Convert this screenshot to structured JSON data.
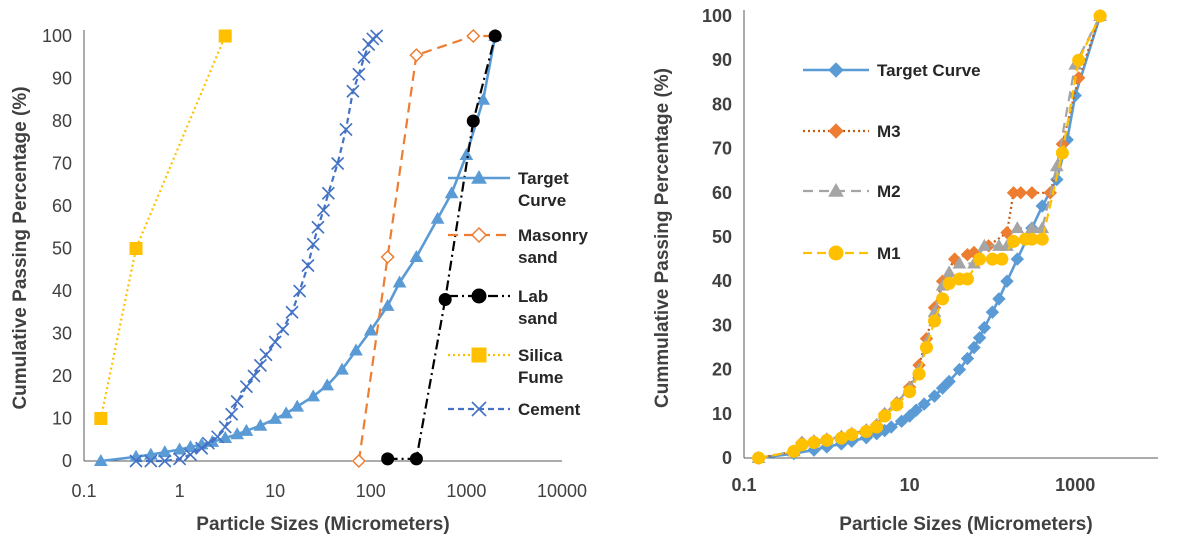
{
  "colors": {
    "target": "#5B9BD5",
    "masonry": "#ED7D31",
    "lab": "#000000",
    "silica": "#FFC000",
    "cement": "#4472C4",
    "m3": "#C55A11",
    "m3_marker": "#ED7D31",
    "m2": "#A5A5A5",
    "m1": "#FFC000",
    "axis": "#595959"
  },
  "chart_data": [
    {
      "type": "line",
      "x_scale": "log",
      "xlabel": "Particle Sizes (Micrometers)",
      "ylabel": "Cumulative Passing Percentage (%)",
      "xlim": [
        0.1,
        10000
      ],
      "ylim": [
        0,
        100
      ],
      "x_ticks": [
        "0.1",
        "1",
        "10",
        "100",
        "1000",
        "10000"
      ],
      "y_ticks": [
        "0",
        "10",
        "20",
        "30",
        "40",
        "50",
        "60",
        "70",
        "80",
        "90",
        "100"
      ],
      "legend_position": "right",
      "series": [
        {
          "name": "Target Curve",
          "color_key": "target",
          "marker": "triangle",
          "dash": "solid",
          "points": [
            [
              0.15,
              0
            ],
            [
              0.35,
              1
            ],
            [
              0.5,
              1.5
            ],
            [
              0.7,
              2.1
            ],
            [
              1,
              2.7
            ],
            [
              1.3,
              3.3
            ],
            [
              1.7,
              3.9
            ],
            [
              2.2,
              4.5
            ],
            [
              3,
              5.4
            ],
            [
              4,
              6.3
            ],
            [
              5,
              7.1
            ],
            [
              7,
              8.3
            ],
            [
              10,
              9.9
            ],
            [
              13,
              11.2
            ],
            [
              17,
              12.8
            ],
            [
              25,
              15.2
            ],
            [
              35,
              17.8
            ],
            [
              50,
              21.5
            ],
            [
              70,
              26
            ],
            [
              100,
              30.7
            ],
            [
              150,
              36.5
            ],
            [
              200,
              42
            ],
            [
              300,
              48
            ],
            [
              500,
              57
            ],
            [
              700,
              63
            ],
            [
              1000,
              72
            ],
            [
              1500,
              85
            ],
            [
              2000,
              100
            ]
          ]
        },
        {
          "name": "Masonry sand",
          "color_key": "masonry",
          "marker": "diamond-open",
          "dash": "long-dash",
          "points": [
            [
              75,
              0
            ],
            [
              150,
              48
            ],
            [
              300,
              95.5
            ],
            [
              1180,
              100
            ],
            [
              2000,
              100
            ]
          ]
        },
        {
          "name": "Lab sand",
          "color_key": "lab",
          "marker": "circle",
          "dash": "dash-dot",
          "points": [
            [
              150,
              0.5
            ],
            [
              300,
              0.5
            ],
            [
              600,
              38
            ],
            [
              1180,
              80
            ],
            [
              2000,
              100
            ]
          ]
        },
        {
          "name": "Silica Fume",
          "color_key": "silica",
          "marker": "square",
          "dash": "dot",
          "points": [
            [
              0.15,
              10
            ],
            [
              0.35,
              50
            ],
            [
              3,
              100
            ]
          ]
        },
        {
          "name": "Cement",
          "color_key": "cement",
          "marker": "x",
          "dash": "short-dash",
          "points": [
            [
              0.35,
              0
            ],
            [
              0.5,
              0
            ],
            [
              0.7,
              0
            ],
            [
              1,
              0.5
            ],
            [
              1.3,
              1.5
            ],
            [
              1.7,
              3
            ],
            [
              2,
              4.2
            ],
            [
              2.5,
              5.7
            ],
            [
              3,
              8
            ],
            [
              3.5,
              11
            ],
            [
              4,
              14
            ],
            [
              5,
              17.5
            ],
            [
              6,
              20
            ],
            [
              7,
              22.5
            ],
            [
              8,
              25
            ],
            [
              10,
              28
            ],
            [
              12,
              31
            ],
            [
              15,
              35
            ],
            [
              18,
              40
            ],
            [
              22,
              46
            ],
            [
              25,
              51
            ],
            [
              28,
              55
            ],
            [
              32,
              59
            ],
            [
              36,
              63
            ],
            [
              45,
              70
            ],
            [
              55,
              78
            ],
            [
              65,
              87
            ],
            [
              75,
              91
            ],
            [
              85,
              95
            ],
            [
              95,
              98
            ],
            [
              105,
              99.3
            ],
            [
              115,
              100
            ]
          ]
        }
      ]
    },
    {
      "type": "line",
      "x_scale": "log",
      "xlabel": "Particle Sizes (Micrometers)",
      "ylabel": "Cummulative Passing Percentage (%)",
      "xlim": [
        0.1,
        10000
      ],
      "ylim": [
        0,
        100
      ],
      "x_ticks": [
        "0.1",
        "10",
        "1000"
      ],
      "y_ticks": [
        "0",
        "10",
        "20",
        "30",
        "40",
        "50",
        "60",
        "70",
        "80",
        "90",
        "100"
      ],
      "legend_position": "left",
      "series": [
        {
          "name": "Target Curve",
          "color_key": "target",
          "marker": "diamond",
          "dash": "solid",
          "points": [
            [
              0.15,
              0
            ],
            [
              0.4,
              1
            ],
            [
              0.7,
              1.8
            ],
            [
              1,
              2.5
            ],
            [
              1.5,
              3.2
            ],
            [
              2,
              3.8
            ],
            [
              3,
              4.6
            ],
            [
              4,
              5.5
            ],
            [
              5,
              6.2
            ],
            [
              6,
              7
            ],
            [
              8,
              8.3
            ],
            [
              10,
              9.5
            ],
            [
              12,
              10.8
            ],
            [
              15,
              12.2
            ],
            [
              20,
              14
            ],
            [
              25,
              15.8
            ],
            [
              30,
              17.3
            ],
            [
              40,
              20
            ],
            [
              50,
              22.5
            ],
            [
              60,
              25
            ],
            [
              70,
              27.2
            ],
            [
              80,
              29.5
            ],
            [
              100,
              33
            ],
            [
              120,
              36
            ],
            [
              150,
              40
            ],
            [
              200,
              45
            ],
            [
              300,
              52
            ],
            [
              400,
              57
            ],
            [
              600,
              63
            ],
            [
              800,
              72
            ],
            [
              1000,
              82
            ],
            [
              2000,
              100
            ]
          ]
        },
        {
          "name": "M3",
          "color_key": "m3",
          "marker_color_key": "m3_marker",
          "marker": "diamond",
          "dash": "dot",
          "points": [
            [
              0.15,
              0
            ],
            [
              0.4,
              1.5
            ],
            [
              0.5,
              3.5
            ],
            [
              0.7,
              3.8
            ],
            [
              1,
              4.2
            ],
            [
              1.5,
              4.8
            ],
            [
              2,
              5.5
            ],
            [
              3,
              6.3
            ],
            [
              4,
              7.5
            ],
            [
              5,
              10
            ],
            [
              7,
              12.5
            ],
            [
              10,
              16
            ],
            [
              13,
              21
            ],
            [
              16,
              27
            ],
            [
              20,
              34
            ],
            [
              25,
              40
            ],
            [
              35,
              45
            ],
            [
              50,
              46
            ],
            [
              60,
              46.5
            ],
            [
              90,
              48
            ],
            [
              150,
              51
            ],
            [
              180,
              60
            ],
            [
              220,
              60
            ],
            [
              300,
              60
            ],
            [
              500,
              60
            ],
            [
              700,
              71
            ],
            [
              1100,
              86
            ],
            [
              2000,
              100
            ]
          ]
        },
        {
          "name": "M2",
          "color_key": "m2",
          "marker": "triangle",
          "dash": "long-dash",
          "points": [
            [
              0.15,
              0
            ],
            [
              0.4,
              1.5
            ],
            [
              0.5,
              3.5
            ],
            [
              0.7,
              3.8
            ],
            [
              1,
              4.3
            ],
            [
              1.5,
              4.9
            ],
            [
              2,
              5.5
            ],
            [
              3,
              6.3
            ],
            [
              4,
              7.5
            ],
            [
              5,
              10
            ],
            [
              7,
              12.5
            ],
            [
              10,
              15.8
            ],
            [
              13,
              20
            ],
            [
              16,
              26
            ],
            [
              20,
              33
            ],
            [
              25,
              39
            ],
            [
              30,
              42
            ],
            [
              40,
              44
            ],
            [
              60,
              44
            ],
            [
              80,
              48
            ],
            [
              120,
              48
            ],
            [
              150,
              48
            ],
            [
              200,
              52
            ],
            [
              300,
              52
            ],
            [
              400,
              52
            ],
            [
              600,
              66
            ],
            [
              1000,
              89
            ],
            [
              2000,
              100
            ]
          ]
        },
        {
          "name": "M1",
          "color_key": "m1",
          "marker": "circle",
          "dash": "dash",
          "points": [
            [
              0.15,
              0
            ],
            [
              0.4,
              1.5
            ],
            [
              0.5,
              3
            ],
            [
              0.7,
              3.5
            ],
            [
              1,
              4
            ],
            [
              1.5,
              4.5
            ],
            [
              2,
              5.3
            ],
            [
              3,
              6
            ],
            [
              4,
              7
            ],
            [
              5,
              9.5
            ],
            [
              7,
              12
            ],
            [
              10,
              15
            ],
            [
              13,
              19
            ],
            [
              16,
              25
            ],
            [
              20,
              31
            ],
            [
              25,
              36
            ],
            [
              30,
              39.5
            ],
            [
              40,
              40.5
            ],
            [
              50,
              40.5
            ],
            [
              70,
              45
            ],
            [
              100,
              45
            ],
            [
              130,
              45
            ],
            [
              180,
              49
            ],
            [
              250,
              49.5
            ],
            [
              300,
              49.5
            ],
            [
              400,
              49.5
            ],
            [
              700,
              69
            ],
            [
              1100,
              90
            ],
            [
              2000,
              100
            ]
          ]
        }
      ]
    }
  ]
}
